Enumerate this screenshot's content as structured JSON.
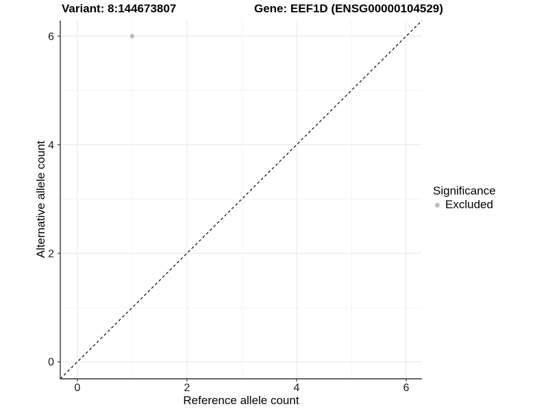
{
  "chart_data": {
    "type": "scatter",
    "title_left": "Variant: 8:144673807",
    "title_right": "Gene: EEF1D (ENSG00000104529)",
    "xlabel": "Reference allele count",
    "ylabel": "Alternative allele count",
    "xlim": [
      -0.3125,
      6.2875
    ],
    "ylim": [
      -0.3125,
      6.2875
    ],
    "xticks": [
      0,
      2,
      4,
      6
    ],
    "yticks": [
      0,
      2,
      4,
      6
    ],
    "x_minor": [
      1,
      3,
      5
    ],
    "y_minor": [
      1,
      3,
      5
    ],
    "grid": true,
    "abline": {
      "slope": 1,
      "intercept": 0,
      "style": "dashed",
      "color": "#000000"
    },
    "series": [
      {
        "name": "Excluded",
        "color": "#bdbdbd",
        "points": [
          {
            "x": 1,
            "y": 6
          }
        ]
      }
    ],
    "legend": {
      "title": "Significance",
      "position": "right",
      "items": [
        {
          "label": "Excluded",
          "color": "#bdbdbd"
        }
      ]
    }
  },
  "colors": {
    "background": "#ffffff",
    "grid_major": "#e4e4e4",
    "grid_minor": "#f0f0f0",
    "axis_line": "#333333",
    "tick_text": "#1a1a1a",
    "point": "#bdbdbd"
  }
}
